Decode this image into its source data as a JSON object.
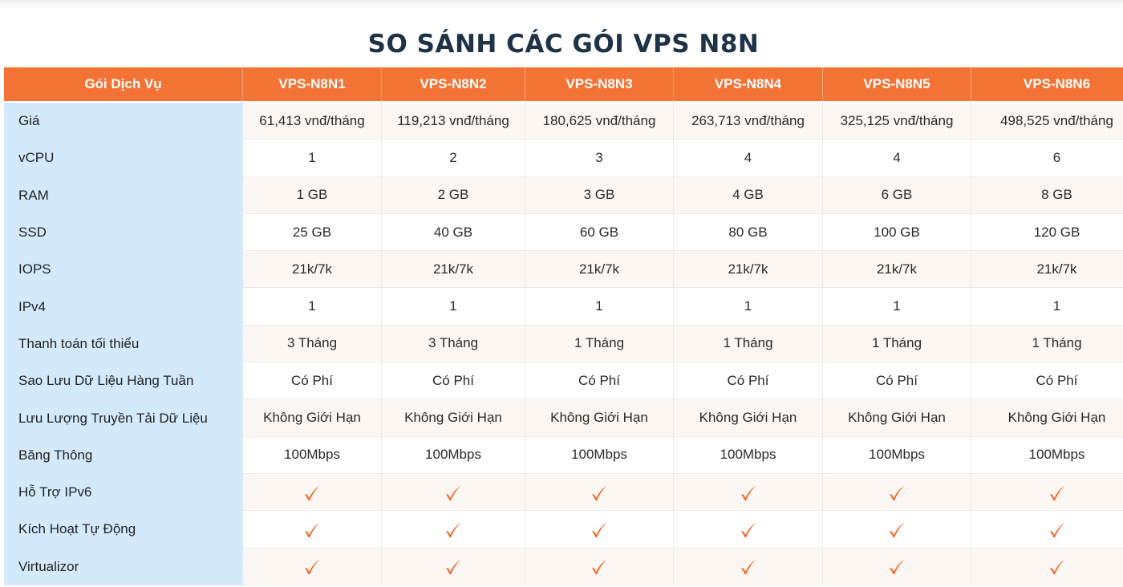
{
  "page": {
    "title": "SO SÁNH CÁC GÓI VPS N8N"
  },
  "colors": {
    "header_bg": "#f37335",
    "label_col_bg": "#d3eafd",
    "row_alt_bg": "#fcf7f3",
    "title_color": "#1e3248",
    "check_color": "#f26a2b"
  },
  "table": {
    "header": {
      "label": "Gói Dịch Vụ",
      "plans": [
        "VPS-N8N1",
        "VPS-N8N2",
        "VPS-N8N3",
        "VPS-N8N4",
        "VPS-N8N5",
        "VPS-N8N6"
      ]
    },
    "rows": [
      {
        "label": "Giá",
        "values": [
          "61,413 vnđ/tháng",
          "119,213 vnđ/tháng",
          "180,625 vnđ/tháng",
          "263,713 vnđ/tháng",
          "325,125 vnđ/tháng",
          "498,525 vnđ/tháng"
        ]
      },
      {
        "label": "vCPU",
        "values": [
          "1",
          "2",
          "3",
          "4",
          "4",
          "6"
        ]
      },
      {
        "label": "RAM",
        "values": [
          "1 GB",
          "2 GB",
          "3 GB",
          "4 GB",
          "6 GB",
          "8 GB"
        ]
      },
      {
        "label": "SSD",
        "values": [
          "25 GB",
          "40 GB",
          "60 GB",
          "80 GB",
          "100 GB",
          "120 GB"
        ]
      },
      {
        "label": "IOPS",
        "values": [
          "21k/7k",
          "21k/7k",
          "21k/7k",
          "21k/7k",
          "21k/7k",
          "21k/7k"
        ]
      },
      {
        "label": "IPv4",
        "values": [
          "1",
          "1",
          "1",
          "1",
          "1",
          "1"
        ]
      },
      {
        "label": "Thanh toán tối thiểu",
        "values": [
          "3 Tháng",
          "3 Tháng",
          "1 Tháng",
          "1 Tháng",
          "1 Tháng",
          "1 Tháng"
        ]
      },
      {
        "label": "Sao Lưu Dữ Liệu Hàng Tuần",
        "values": [
          "Có Phí",
          "Có Phí",
          "Có Phí",
          "Có Phí",
          "Có Phí",
          "Có Phí"
        ]
      },
      {
        "label": "Lưu Lượng Truyền Tải Dữ Liệu",
        "values": [
          "Không Giới Hạn",
          "Không Giới Hạn",
          "Không Giới Hạn",
          "Không Giới Hạn",
          "Không Giới Hạn",
          "Không Giới Hạn"
        ]
      },
      {
        "label": "Băng Thông",
        "values": [
          "100Mbps",
          "100Mbps",
          "100Mbps",
          "100Mbps",
          "100Mbps",
          "100Mbps"
        ]
      },
      {
        "label": "Hỗ Trợ IPv6",
        "values": [
          "check-icon",
          "check-icon",
          "check-icon",
          "check-icon",
          "check-icon",
          "check-icon"
        ]
      },
      {
        "label": "Kích Hoạt Tự Động",
        "values": [
          "check-icon",
          "check-icon",
          "check-icon",
          "check-icon",
          "check-icon",
          "check-icon"
        ]
      },
      {
        "label": "Virtualizor",
        "values": [
          "check-icon",
          "check-icon",
          "check-icon",
          "check-icon",
          "check-icon",
          "check-icon"
        ]
      }
    ]
  }
}
